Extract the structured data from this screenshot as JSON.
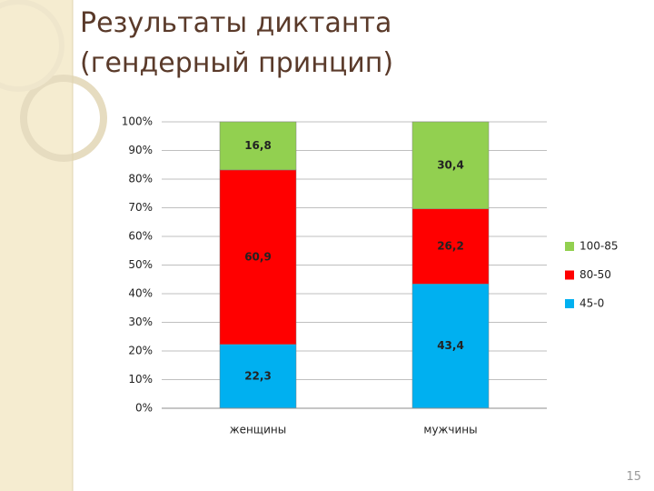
{
  "chart_data": {
    "type": "stacked_bar_100",
    "title": "Результаты диктанта (гендерный принцип)",
    "categories": [
      "женщины",
      "мужчины"
    ],
    "series": [
      {
        "name": "45-0",
        "color": "#00b0f0",
        "values": [
          22.3,
          43.4
        ],
        "value_labels": [
          "22,3",
          "43,4"
        ]
      },
      {
        "name": "80-50",
        "color": "#ff0000",
        "values": [
          60.9,
          26.2
        ],
        "value_labels": [
          "60,9",
          "26,2"
        ]
      },
      {
        "name": "100-85",
        "color": "#92d050",
        "values": [
          16.8,
          30.4
        ],
        "value_labels": [
          "16,8",
          "30,4"
        ]
      }
    ],
    "ylim": [
      0,
      100
    ],
    "yticks": [
      {
        "value": 0,
        "label": "0%"
      },
      {
        "value": 10,
        "label": "10%"
      },
      {
        "value": 20,
        "label": "20%"
      },
      {
        "value": 30,
        "label": "30%"
      },
      {
        "value": 40,
        "label": "40%"
      },
      {
        "value": 50,
        "label": "50%"
      },
      {
        "value": 60,
        "label": "60%"
      },
      {
        "value": 70,
        "label": "70%"
      },
      {
        "value": 80,
        "label": "80%"
      },
      {
        "value": 90,
        "label": "90%"
      },
      {
        "value": 100,
        "label": "100%"
      }
    ],
    "grid": true,
    "legend": "right"
  },
  "slide": {
    "page_number": "15"
  }
}
